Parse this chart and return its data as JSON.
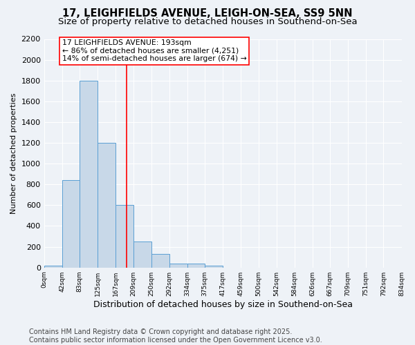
{
  "title": "17, LEIGHFIELDS AVENUE, LEIGH-ON-SEA, SS9 5NN",
  "subtitle": "Size of property relative to detached houses in Southend-on-Sea",
  "xlabel": "Distribution of detached houses by size in Southend-on-Sea",
  "ylabel": "Number of detached properties",
  "footer_line1": "Contains HM Land Registry data © Crown copyright and database right 2025.",
  "footer_line2": "Contains public sector information licensed under the Open Government Licence v3.0.",
  "bin_edges": [
    0,
    42,
    83,
    125,
    167,
    209,
    250,
    292,
    334,
    375,
    417,
    459,
    500,
    542,
    584,
    626,
    667,
    709,
    751,
    792,
    834
  ],
  "bar_heights": [
    20,
    840,
    1800,
    1200,
    600,
    250,
    130,
    40,
    40,
    20,
    0,
    0,
    0,
    0,
    0,
    0,
    0,
    0,
    0,
    0
  ],
  "bar_color": "#c8d8e8",
  "bar_edge_color": "#5a9fd4",
  "red_line_x": 193,
  "annotation_text": "17 LEIGHFIELDS AVENUE: 193sqm\n← 86% of detached houses are smaller (4,251)\n14% of semi-detached houses are larger (674) →",
  "annotation_box_color": "white",
  "annotation_box_edge_color": "red",
  "ylim": [
    0,
    2200
  ],
  "yticks": [
    0,
    200,
    400,
    600,
    800,
    1000,
    1200,
    1400,
    1600,
    1800,
    2000,
    2200
  ],
  "bg_color": "#eef2f7",
  "grid_color": "white",
  "title_fontsize": 10.5,
  "subtitle_fontsize": 9.5,
  "annotation_fontsize": 7.8,
  "footer_fontsize": 7.0,
  "xlabel_fontsize": 9.0,
  "ylabel_fontsize": 8.0
}
